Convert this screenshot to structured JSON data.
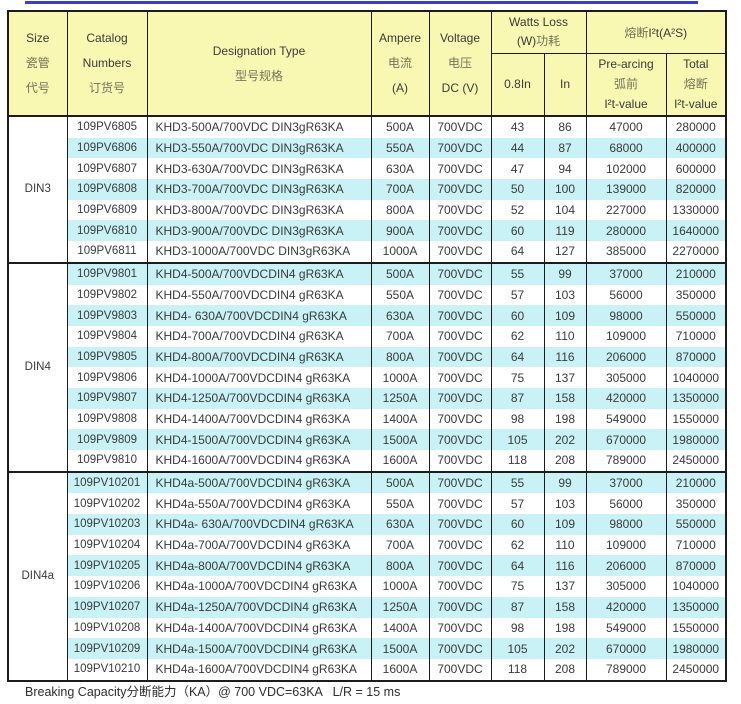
{
  "colors": {
    "top_rule": "#3d3dcc",
    "header_bg": "#f8f8b2",
    "stripe_bg": "#c9f2f6",
    "border": "#1c1c1c"
  },
  "header": {
    "size_lines": [
      "Size",
      "瓷管",
      "代号"
    ],
    "catalog_lines": [
      "Catalog",
      "Numbers",
      "订货号"
    ],
    "designation_lines": [
      "Designation Type",
      "型号规格"
    ],
    "ampere_lines": [
      "Ampere",
      "电流",
      "(A)"
    ],
    "voltage_lines": [
      "Voltage",
      "电压",
      "DC (V)"
    ],
    "watts_loss": {
      "line1": "Watts Loss",
      "line2_en": "(W)",
      "line2_zh": "功耗"
    },
    "i2t": {
      "zh": "熔断",
      "en": "I²t(A²S)"
    },
    "sub_0_8in": "0.8In",
    "sub_in": "In",
    "prearcing_lines": [
      "Pre-arcing",
      "弧前",
      "I²t-value"
    ],
    "total_lines": [
      "Total",
      "熔断",
      "I²t-value"
    ]
  },
  "table": {
    "columns": [
      "size",
      "catalog_number",
      "designation_type",
      "ampere",
      "voltage",
      "watts_loss_0.8In",
      "watts_loss_In",
      "prearcing_i2t",
      "total_i2t"
    ],
    "groups": [
      {
        "size": "DIN3",
        "rows": [
          [
            "109PV6805",
            "KHD3-500A/700VDC DIN3gR63KA",
            "500A",
            "700VDC",
            "43",
            "86",
            "47000",
            "280000"
          ],
          [
            "109PV6806",
            "KHD3-550A/700VDC DIN3gR63KA",
            "550A",
            "700VDC",
            "44",
            "87",
            "68000",
            "400000"
          ],
          [
            "109PV6807",
            "KHD3-630A/700VDC DIN3gR63KA",
            "630A",
            "700VDC",
            "47",
            "94",
            "102000",
            "600000"
          ],
          [
            "109PV6808",
            "KHD3-700A/700VDC DIN3gR63KA",
            "700A",
            "700VDC",
            "50",
            "100",
            "139000",
            "820000"
          ],
          [
            "109PV6809",
            "KHD3-800A/700VDC DIN3gR63KA",
            "800A",
            "700VDC",
            "52",
            "104",
            "227000",
            "1330000"
          ],
          [
            "109PV6810",
            "KHD3-900A/700VDC DIN3gR63KA",
            "900A",
            "700VDC",
            "60",
            "119",
            "280000",
            "1640000"
          ],
          [
            "109PV6811",
            "KHD3-1000A/700VDC DIN3gR63KA",
            "1000A",
            "700VDC",
            "64",
            "127",
            "385000",
            "2270000"
          ]
        ]
      },
      {
        "size": "DIN4",
        "rows": [
          [
            "109PV9801",
            "KHD4-500A/700VDCDIN4 gR63KA",
            "500A",
            "700VDC",
            "55",
            "99",
            "37000",
            "210000"
          ],
          [
            "109PV9802",
            "KHD4-550A/700VDCDIN4 gR63KA",
            "550A",
            "700VDC",
            "57",
            "103",
            "56000",
            "350000"
          ],
          [
            "109PV9803",
            "KHD4- 630A/700VDCDIN4 gR63KA",
            "630A",
            "700VDC",
            "60",
            "109",
            "98000",
            "550000"
          ],
          [
            "109PV9804",
            "KHD4-700A/700VDCDIN4 gR63KA",
            "700A",
            "700VDC",
            "62",
            "110",
            "109000",
            "710000"
          ],
          [
            "109PV9805",
            "KHD4-800A/700VDCDIN4 gR63KA",
            "800A",
            "700VDC",
            "64",
            "116",
            "206000",
            "870000"
          ],
          [
            "109PV9806",
            "KHD4-1000A/700VDCDIN4 gR63KA",
            "1000A",
            "700VDC",
            "75",
            "137",
            "305000",
            "1040000"
          ],
          [
            "109PV9807",
            "KHD4-1250A/700VDCDIN4 gR63KA",
            "1250A",
            "700VDC",
            "87",
            "158",
            "420000",
            "1350000"
          ],
          [
            "109PV9808",
            "KHD4-1400A/700VDCDIN4 gR63KA",
            "1400A",
            "700VDC",
            "98",
            "198",
            "549000",
            "1550000"
          ],
          [
            "109PV9809",
            "KHD4-1500A/700VDCDIN4 gR63KA",
            "1500A",
            "700VDC",
            "105",
            "202",
            "670000",
            "1980000"
          ],
          [
            "109PV9810",
            "KHD4-1600A/700VDCDIN4 gR63KA",
            "1600A",
            "700VDC",
            "118",
            "208",
            "789000",
            "2450000"
          ]
        ]
      },
      {
        "size": "DIN4a",
        "rows": [
          [
            "109PV10201",
            "KHD4a-500A/700VDCDIN4 gR63KA",
            "500A",
            "700VDC",
            "55",
            "99",
            "37000",
            "210000"
          ],
          [
            "109PV10202",
            "KHD4a-550A/700VDCDIN4 gR63KA",
            "550A",
            "700VDC",
            "57",
            "103",
            "56000",
            "350000"
          ],
          [
            "109PV10203",
            "KHD4a- 630A/700VDCDIN4 gR63KA",
            "630A",
            "700VDC",
            "60",
            "109",
            "98000",
            "550000"
          ],
          [
            "109PV10204",
            "KHD4a-700A/700VDCDIN4 gR63KA",
            "700A",
            "700VDC",
            "62",
            "110",
            "109000",
            "710000"
          ],
          [
            "109PV10205",
            "KHD4a-800A/700VDCDIN4 gR63KA",
            "800A",
            "700VDC",
            "64",
            "116",
            "206000",
            "870000"
          ],
          [
            "109PV10206",
            "KHD4a-1000A/700VDCDIN4 gR63KA",
            "1000A",
            "700VDC",
            "75",
            "137",
            "305000",
            "1040000"
          ],
          [
            "109PV10207",
            "KHD4a-1250A/700VDCDIN4 gR63KA",
            "1250A",
            "700VDC",
            "87",
            "158",
            "420000",
            "1350000"
          ],
          [
            "109PV10208",
            "KHD4a-1400A/700VDCDIN4 gR63KA",
            "1400A",
            "700VDC",
            "98",
            "198",
            "549000",
            "1550000"
          ],
          [
            "109PV10209",
            "KHD4a-1500A/700VDCDIN4 gR63KA",
            "1500A",
            "700VDC",
            "105",
            "202",
            "670000",
            "1980000"
          ],
          [
            "109PV10210",
            "KHD4a-1600A/700VDCDIN4 gR63KA",
            "1600A",
            "700VDC",
            "118",
            "208",
            "789000",
            "2450000"
          ]
        ]
      }
    ]
  },
  "footer": {
    "text": "Breaking Capacity分断能力（KA）@ 700 VDC=63KA   L/R = 15 ms"
  }
}
